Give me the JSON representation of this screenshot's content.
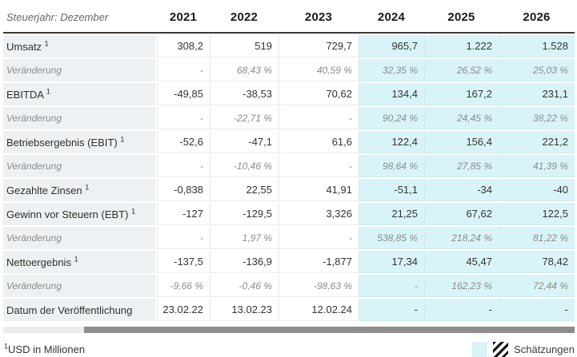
{
  "header": {
    "label": "Steuerjahr: Dezember",
    "years": [
      "2021",
      "2022",
      "2023",
      "2024",
      "2025",
      "2026"
    ]
  },
  "estimate_start_index": 3,
  "rows": [
    {
      "label": "Umsatz",
      "sup": "1",
      "type": "metric",
      "values": [
        "308,2",
        "519",
        "729,7",
        "965,7",
        "1.222",
        "1.528"
      ]
    },
    {
      "label": "Veränderung",
      "type": "change",
      "values": [
        "-",
        "68,43 %",
        "40,59 %",
        "32,35 %",
        "26,52 %",
        "25,03 %"
      ]
    },
    {
      "label": "EBITDA",
      "sup": "1",
      "type": "metric",
      "values": [
        "-49,85",
        "-38,53",
        "70,62",
        "134,4",
        "167,2",
        "231,1"
      ]
    },
    {
      "label": "Veränderung",
      "type": "change",
      "values": [
        "-",
        "-22,71 %",
        "-",
        "90,24 %",
        "24,45 %",
        "38,22 %"
      ]
    },
    {
      "label": "Betriebsergebnis (EBIT)",
      "sup": "1",
      "type": "metric",
      "values": [
        "-52,6",
        "-47,1",
        "61,6",
        "122,4",
        "156,4",
        "221,2"
      ]
    },
    {
      "label": "Veränderung",
      "type": "change",
      "values": [
        "-",
        "-10,46 %",
        "-",
        "98,64 %",
        "27,85 %",
        "41,39 %"
      ]
    },
    {
      "label": "Gezahlte Zinsen",
      "sup": "1",
      "type": "metric",
      "values": [
        "-0,838",
        "22,55",
        "41,91",
        "-51,1",
        "-34",
        "-40"
      ]
    },
    {
      "label": "Gewinn vor Steuern (EBT)",
      "sup": "1",
      "type": "metric",
      "values": [
        "-127",
        "-129,5",
        "3,326",
        "21,25",
        "67,62",
        "122,5"
      ]
    },
    {
      "label": "Veränderung",
      "type": "change",
      "values": [
        "-",
        "1,97 %",
        "-",
        "538,85 %",
        "218,24 %",
        "81,22 %"
      ]
    },
    {
      "label": "Nettoergebnis",
      "sup": "1",
      "type": "metric",
      "values": [
        "-137,5",
        "-136,9",
        "-1,877",
        "17,34",
        "45,47",
        "78,42"
      ]
    },
    {
      "label": "Veränderung",
      "type": "change",
      "values": [
        "-9,66 %",
        "-0,46 %",
        "-98,63 %",
        "-",
        "162,23 %",
        "72,44 %"
      ]
    },
    {
      "label": "Datum der Veröffentlichung",
      "type": "metric",
      "values": [
        "23.02.22",
        "13.02.23",
        "12.02.24",
        "-",
        "-",
        "-"
      ]
    }
  ],
  "footer": {
    "note_sup": "1",
    "note_text": "USD in Millionen",
    "legend_label": "Schätzungen"
  },
  "colors": {
    "estimate_bg": "#d9f4f8",
    "label_bg": "#eef1f3",
    "header_border": "#3a3a3a",
    "scrollbar_thumb": "#8d8d8d",
    "scrollbar_track": "#ececec"
  }
}
